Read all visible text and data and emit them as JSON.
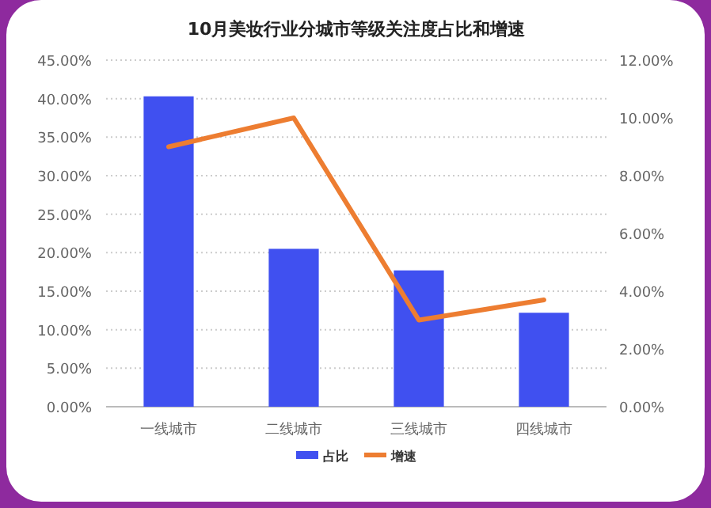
{
  "chart_data": {
    "type": "bar",
    "title": "10月美妆行业分城市等级关注度占比和增速",
    "categories": [
      "一线城市",
      "二线城市",
      "三线城市",
      "四线城市"
    ],
    "series": [
      {
        "name": "占比",
        "color": "#4050f0",
        "values": [
          40.3,
          20.5,
          17.7,
          12.2
        ]
      },
      {
        "name": "增速",
        "type": "line",
        "axis": "y2",
        "color": "#ed7d31",
        "values": [
          9.0,
          10.0,
          3.0,
          3.7
        ]
      }
    ],
    "ylim": [
      0,
      45
    ],
    "yticks": [
      {
        "value": 0,
        "label": "0.00%"
      },
      {
        "value": 5,
        "label": "5.00%"
      },
      {
        "value": 10,
        "label": "10.00%"
      },
      {
        "value": 15,
        "label": "15.00%"
      },
      {
        "value": 20,
        "label": "20.00%"
      },
      {
        "value": 25,
        "label": "25.00%"
      },
      {
        "value": 30,
        "label": "30.00%"
      },
      {
        "value": 35,
        "label": "35.00%"
      },
      {
        "value": 40,
        "label": "40.00%"
      },
      {
        "value": 45,
        "label": "45.00%"
      }
    ],
    "y2lim": [
      0,
      12
    ],
    "y2ticks": [
      {
        "value": 0,
        "label": "0.00%"
      },
      {
        "value": 2,
        "label": "2.00%"
      },
      {
        "value": 4,
        "label": "4.00%"
      },
      {
        "value": 6,
        "label": "6.00%"
      },
      {
        "value": 8,
        "label": "8.00%"
      },
      {
        "value": 10,
        "label": "10.00%"
      },
      {
        "value": 12,
        "label": "12.00%"
      }
    ],
    "grid": "y",
    "legend": "bottom",
    "marker": "none",
    "line_style": "solid"
  }
}
